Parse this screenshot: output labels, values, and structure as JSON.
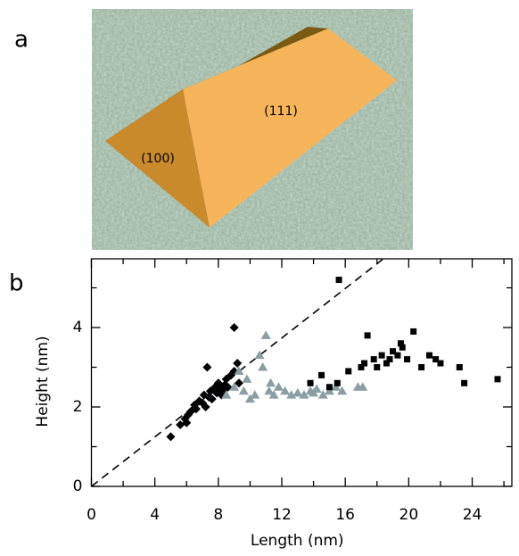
{
  "panel_a": {
    "label": "a",
    "annotations": [
      "(111)",
      "(100)"
    ]
  },
  "panel_b": {
    "label": "b"
  },
  "chart_data": {
    "type": "scatter",
    "xlabel": "Length (nm)",
    "ylabel": "Height (nm)",
    "xlim": [
      0,
      26.5
    ],
    "ylim": [
      0,
      5.73
    ],
    "xticks": [
      0,
      4,
      8,
      12,
      16,
      20,
      24
    ],
    "yticks": [
      0,
      2,
      4
    ],
    "xminorticks": [
      2,
      6,
      10,
      14,
      18,
      22,
      26
    ],
    "yminorticks": [
      1,
      3,
      5
    ],
    "reference_line": {
      "x": [
        0,
        18.4
      ],
      "y": [
        0,
        5.73
      ]
    },
    "series": [
      {
        "marker": "diamond",
        "color": "#000000",
        "x": [
          5.0,
          5.6,
          5.9,
          6.1,
          6.3,
          6.5,
          6.6,
          6.8,
          7.0,
          7.1,
          7.2,
          7.4,
          7.5,
          7.6,
          7.8,
          7.9,
          8.0,
          8.1,
          8.2,
          8.4,
          8.5,
          8.6,
          8.8,
          9.0,
          9.2,
          9.3,
          6.0,
          7.3,
          8.3,
          9.0
        ],
        "values": [
          1.25,
          1.55,
          1.7,
          1.8,
          1.9,
          2.05,
          1.95,
          2.15,
          2.1,
          2.3,
          2.0,
          2.25,
          2.4,
          2.2,
          2.5,
          2.35,
          2.6,
          2.45,
          2.3,
          2.55,
          2.7,
          2.5,
          2.8,
          2.9,
          3.1,
          2.6,
          1.6,
          3.0,
          2.4,
          4.0
        ]
      },
      {
        "marker": "triangle",
        "color": "#8a9ea4",
        "x": [
          8.5,
          9.0,
          9.3,
          9.6,
          10.0,
          10.3,
          10.6,
          11.0,
          11.2,
          11.5,
          11.8,
          12.2,
          12.6,
          13.0,
          13.4,
          13.8,
          14.2,
          14.6,
          15.0,
          15.4,
          16.8,
          17.1,
          10.8,
          11.3,
          9.8,
          14.0,
          15.8
        ],
        "values": [
          2.3,
          2.5,
          2.9,
          2.4,
          2.2,
          2.3,
          3.3,
          3.8,
          2.4,
          2.3,
          2.5,
          2.4,
          2.3,
          2.35,
          2.3,
          2.4,
          2.45,
          2.3,
          2.4,
          2.5,
          2.5,
          2.5,
          3.0,
          2.6,
          2.7,
          2.35,
          2.4
        ]
      },
      {
        "marker": "square",
        "color": "#000000",
        "x": [
          13.8,
          14.5,
          15.0,
          15.5,
          16.2,
          17.0,
          17.4,
          17.8,
          18.0,
          18.3,
          18.6,
          19.0,
          19.3,
          19.6,
          19.9,
          20.3,
          20.8,
          21.3,
          21.7,
          22.0,
          23.2,
          23.5,
          25.6,
          17.2,
          18.8,
          19.5,
          15.6
        ],
        "values": [
          2.6,
          2.8,
          2.5,
          2.6,
          2.9,
          3.0,
          3.8,
          3.2,
          3.0,
          3.3,
          3.1,
          3.4,
          3.3,
          3.5,
          3.2,
          3.9,
          3.0,
          3.3,
          3.2,
          3.1,
          3.0,
          2.6,
          2.7,
          3.1,
          3.2,
          3.6,
          5.2
        ]
      }
    ]
  }
}
